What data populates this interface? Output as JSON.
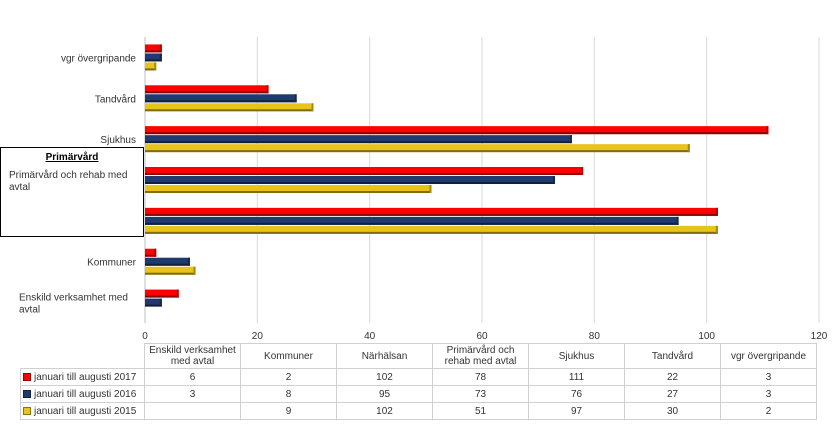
{
  "chart_data": {
    "type": "bar",
    "orientation": "horizontal",
    "categories": [
      "Enskild verksamhet med avtal",
      "Kommuner",
      "Närhälsan",
      "Primärvård och rehab med avtal",
      "Sjukhus",
      "Tandvård",
      "vgr övergripande"
    ],
    "series": [
      {
        "name": "januari till augusti 2017",
        "color": "#ff0000",
        "values": [
          6,
          2,
          102,
          78,
          111,
          22,
          3
        ]
      },
      {
        "name": "januari till augusti 2016",
        "color": "#1f3a6e",
        "values": [
          3,
          8,
          95,
          73,
          76,
          27,
          3
        ]
      },
      {
        "name": "januari till augusti 2015",
        "color": "#e8c31a",
        "values": [
          null,
          9,
          102,
          51,
          97,
          30,
          2
        ]
      }
    ],
    "xlim": [
      0,
      120
    ],
    "xticks": [
      0,
      20,
      40,
      60,
      80,
      100,
      120
    ],
    "grid": true,
    "legend": "data table below chart"
  },
  "callout": {
    "title": "Primärvård",
    "subtitle": "Primärvård och rehab med avtal"
  },
  "table": {
    "headers": [
      "Enskild verksamhet med avtal",
      "Kommuner",
      "Närhälsan",
      "Primärvård och rehab med avtal",
      "Sjukhus",
      "Tandvård",
      "vgr övergripande"
    ],
    "rows": [
      {
        "label": "januari till augusti 2017",
        "color": "#ff0000",
        "cells": [
          "6",
          "2",
          "102",
          "78",
          "111",
          "22",
          "3"
        ]
      },
      {
        "label": "januari till augusti 2016",
        "color": "#1f3a6e",
        "cells": [
          "3",
          "8",
          "95",
          "73",
          "76",
          "27",
          "3"
        ]
      },
      {
        "label": "januari till augusti 2015",
        "color": "#e8c31a",
        "cells": [
          "",
          "9",
          "102",
          "51",
          "97",
          "30",
          "2"
        ]
      }
    ]
  }
}
